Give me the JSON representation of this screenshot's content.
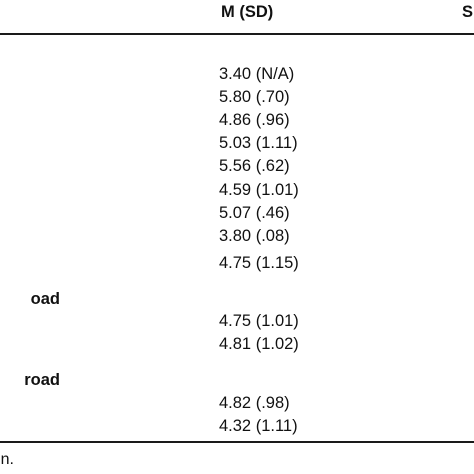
{
  "header": {
    "col_msd": "M (SD)",
    "col_right_partial": "S"
  },
  "sections": [
    {
      "label_partial": "oad"
    },
    {
      "label_partial": "road"
    }
  ],
  "rows": [
    {
      "value": "3.40 (N/A)"
    },
    {
      "value": "5.80 (.70)"
    },
    {
      "value": "4.86 (.96)"
    },
    {
      "value": "5.03 (1.11)"
    },
    {
      "value": "5.56 (.62)"
    },
    {
      "value": "4.59 (1.01)"
    },
    {
      "value": "5.07 (.46)"
    },
    {
      "value": "3.80 (.08)"
    },
    {
      "value": "4.75 (1.15)"
    },
    {
      "value": "4.75 (1.01)"
    },
    {
      "value": "4.81 (1.02)"
    },
    {
      "value": "4.82 (.98)"
    },
    {
      "value": "4.32 (1.11)"
    }
  ],
  "footnote": {
    "text_partial": "n."
  }
}
